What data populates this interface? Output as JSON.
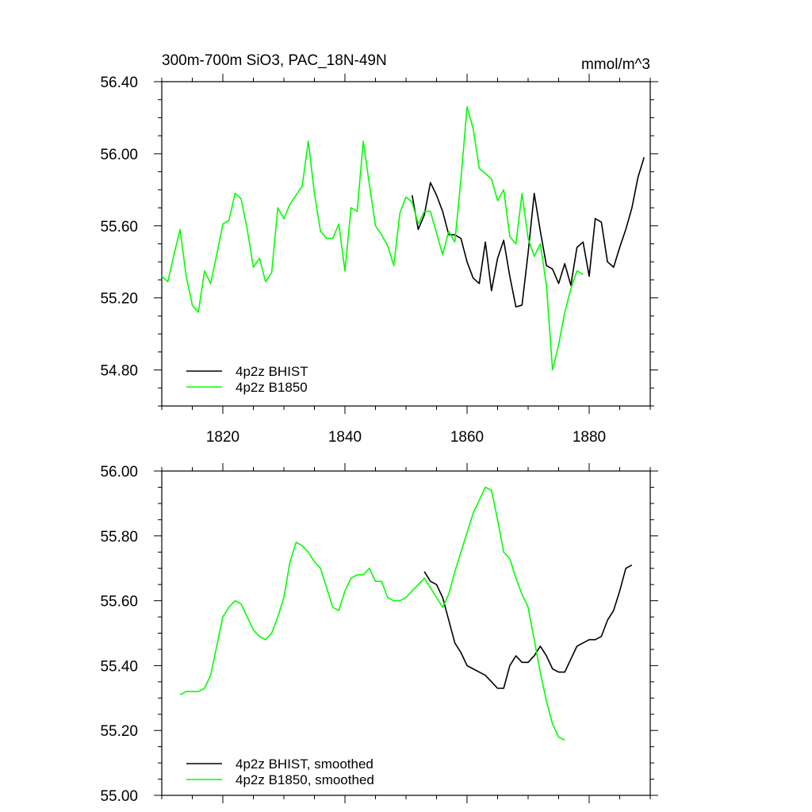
{
  "chart_data": [
    {
      "type": "line",
      "title": "300m-700m SiO3, PAC_18N-49N",
      "units": "mmol/m^3",
      "xlim": [
        1810,
        1890
      ],
      "ylim": [
        54.6,
        56.4
      ],
      "x_ticks": [
        1820,
        1840,
        1860,
        1880
      ],
      "x_tick_labels": [
        "1820",
        "1840",
        "1860",
        "1880"
      ],
      "y_ticks": [
        54.8,
        55.2,
        55.6,
        56.0,
        56.4
      ],
      "y_tick_labels": [
        "54.80",
        "55.20",
        "55.60",
        "56.00",
        "56.40"
      ],
      "legend_position": "bottom-left",
      "series": [
        {
          "name": "4p2z BHIST",
          "color": "#000000",
          "x": [
            1851,
            1852,
            1853,
            1854,
            1855,
            1856,
            1857,
            1858,
            1859,
            1860,
            1861,
            1862,
            1863,
            1864,
            1865,
            1866,
            1867,
            1868,
            1869,
            1870,
            1871,
            1872,
            1873,
            1874,
            1875,
            1876,
            1877,
            1878,
            1879,
            1880,
            1881,
            1882,
            1883,
            1884,
            1885,
            1886,
            1887,
            1888,
            1889
          ],
          "y": [
            55.77,
            55.58,
            55.66,
            55.84,
            55.77,
            55.68,
            55.55,
            55.55,
            55.53,
            55.4,
            55.31,
            55.28,
            55.51,
            55.24,
            55.42,
            55.52,
            55.32,
            55.15,
            55.16,
            55.45,
            55.78,
            55.57,
            55.38,
            55.36,
            55.28,
            55.39,
            55.27,
            55.48,
            55.51,
            55.32,
            55.64,
            55.62,
            55.4,
            55.37,
            55.48,
            55.58,
            55.7,
            55.87,
            55.98
          ]
        },
        {
          "name": "4p2z B1850",
          "color": "#00ff00",
          "x": [
            1810,
            1811,
            1812,
            1813,
            1814,
            1815,
            1816,
            1817,
            1818,
            1819,
            1820,
            1821,
            1822,
            1823,
            1824,
            1825,
            1826,
            1827,
            1828,
            1829,
            1830,
            1831,
            1832,
            1833,
            1834,
            1835,
            1836,
            1837,
            1838,
            1839,
            1840,
            1841,
            1842,
            1843,
            1844,
            1845,
            1846,
            1847,
            1848,
            1849,
            1850,
            1851,
            1852,
            1853,
            1854,
            1855,
            1856,
            1857,
            1858,
            1859,
            1860,
            1861,
            1862,
            1863,
            1864,
            1865,
            1866,
            1867,
            1868,
            1869,
            1870,
            1871,
            1872,
            1873,
            1874,
            1875,
            1876,
            1877,
            1878,
            1879
          ],
          "y": [
            55.32,
            55.29,
            55.44,
            55.58,
            55.32,
            55.16,
            55.12,
            55.35,
            55.28,
            55.44,
            55.61,
            55.63,
            55.78,
            55.75,
            55.58,
            55.37,
            55.42,
            55.29,
            55.34,
            55.7,
            55.64,
            55.72,
            55.77,
            55.82,
            56.07,
            55.78,
            55.57,
            55.53,
            55.53,
            55.61,
            55.35,
            55.7,
            55.68,
            56.07,
            55.83,
            55.6,
            55.55,
            55.49,
            55.38,
            55.67,
            55.76,
            55.73,
            55.61,
            55.68,
            55.68,
            55.56,
            55.44,
            55.57,
            55.51,
            55.86,
            56.26,
            56.14,
            55.92,
            55.89,
            55.86,
            55.74,
            55.8,
            55.54,
            55.5,
            55.78,
            55.53,
            55.43,
            55.5,
            55.27,
            54.8,
            54.94,
            55.12,
            55.25,
            55.35,
            55.33
          ]
        }
      ]
    },
    {
      "type": "line",
      "xlim": [
        1810,
        1890
      ],
      "ylim": [
        55.0,
        56.0
      ],
      "x_ticks": [
        1820,
        1840,
        1860,
        1880
      ],
      "y_ticks": [
        55.0,
        55.2,
        55.4,
        55.6,
        55.8,
        56.0
      ],
      "y_tick_labels": [
        "55.00",
        "55.20",
        "55.40",
        "55.60",
        "55.80",
        "56.00"
      ],
      "legend_position": "bottom-left",
      "series": [
        {
          "name": "4p2z BHIST, smoothed",
          "color": "#000000",
          "x": [
            1853,
            1854,
            1855,
            1856,
            1857,
            1858,
            1859,
            1860,
            1861,
            1862,
            1863,
            1864,
            1865,
            1866,
            1867,
            1868,
            1869,
            1870,
            1871,
            1872,
            1873,
            1874,
            1875,
            1876,
            1877,
            1878,
            1879,
            1880,
            1881,
            1882,
            1883,
            1884,
            1885,
            1886,
            1887
          ],
          "y": [
            55.69,
            55.66,
            55.65,
            55.61,
            55.54,
            55.47,
            55.44,
            55.4,
            55.39,
            55.38,
            55.37,
            55.35,
            55.33,
            55.33,
            55.4,
            55.43,
            55.41,
            55.41,
            55.43,
            55.46,
            55.43,
            55.39,
            55.38,
            55.38,
            55.42,
            55.46,
            55.47,
            55.48,
            55.48,
            55.49,
            55.54,
            55.57,
            55.63,
            55.7,
            55.71
          ]
        },
        {
          "name": "4p2z B1850, smoothed",
          "color": "#00ff00",
          "x": [
            1813,
            1814,
            1815,
            1816,
            1817,
            1818,
            1819,
            1820,
            1821,
            1822,
            1823,
            1824,
            1825,
            1826,
            1827,
            1828,
            1829,
            1830,
            1831,
            1832,
            1833,
            1834,
            1835,
            1836,
            1837,
            1838,
            1839,
            1840,
            1841,
            1842,
            1843,
            1844,
            1845,
            1846,
            1847,
            1848,
            1849,
            1850,
            1851,
            1852,
            1853,
            1854,
            1855,
            1856,
            1857,
            1858,
            1859,
            1860,
            1861,
            1862,
            1863,
            1864,
            1865,
            1866,
            1867,
            1868,
            1869,
            1870,
            1871,
            1872,
            1873,
            1874,
            1875,
            1876
          ],
          "y": [
            55.31,
            55.32,
            55.32,
            55.32,
            55.33,
            55.37,
            55.46,
            55.55,
            55.58,
            55.6,
            55.59,
            55.55,
            55.51,
            55.49,
            55.48,
            55.5,
            55.55,
            55.61,
            55.72,
            55.78,
            55.77,
            55.75,
            55.72,
            55.7,
            55.64,
            55.58,
            55.57,
            55.63,
            55.67,
            55.68,
            55.68,
            55.7,
            55.66,
            55.66,
            55.61,
            55.6,
            55.6,
            55.61,
            55.63,
            55.65,
            55.67,
            55.64,
            55.61,
            55.58,
            55.62,
            55.69,
            55.75,
            55.81,
            55.87,
            55.91,
            55.95,
            55.94,
            55.85,
            55.75,
            55.73,
            55.67,
            55.62,
            55.58,
            55.48,
            55.38,
            55.29,
            55.22,
            55.18,
            55.17
          ]
        }
      ]
    }
  ]
}
